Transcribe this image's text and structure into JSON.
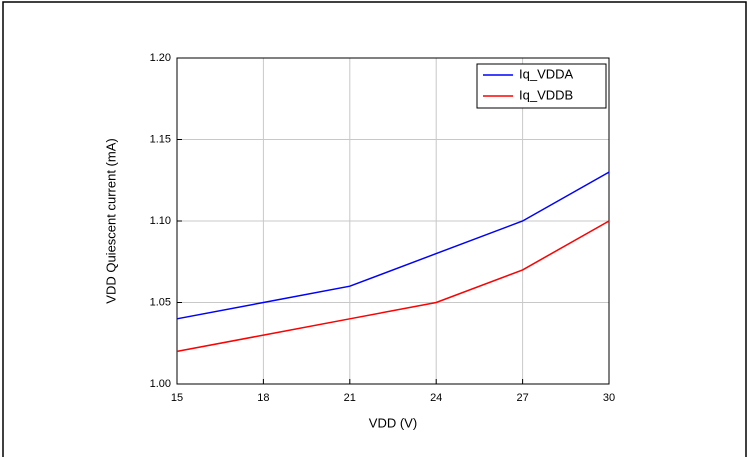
{
  "chart_data": {
    "type": "line",
    "xlabel": "VDD (V)",
    "ylabel": "VDD Quiescent current  (mA)",
    "x": [
      15,
      18,
      21,
      24,
      27,
      30
    ],
    "series": [
      {
        "name": "Iq_VDDA",
        "color": "#0000ff",
        "values": [
          1.04,
          1.05,
          1.06,
          1.08,
          1.1,
          1.13
        ]
      },
      {
        "name": "Iq_VDDB",
        "color": "#ff0000",
        "values": [
          1.02,
          1.03,
          1.04,
          1.05,
          1.07,
          1.1
        ]
      }
    ],
    "xlim": [
      15,
      30
    ],
    "xticks": [
      15,
      18,
      21,
      24,
      27,
      30
    ],
    "ylim": [
      1.0,
      1.2
    ],
    "yticks": [
      {
        "value": 1.0,
        "label": "1.00"
      },
      {
        "value": 1.05,
        "label": "1.05"
      },
      {
        "value": 1.1,
        "label": "1.10"
      },
      {
        "value": 1.15,
        "label": "1.15"
      },
      {
        "value": 1.2,
        "label": "1.20"
      }
    ],
    "grid": true,
    "legend": "upper right"
  }
}
